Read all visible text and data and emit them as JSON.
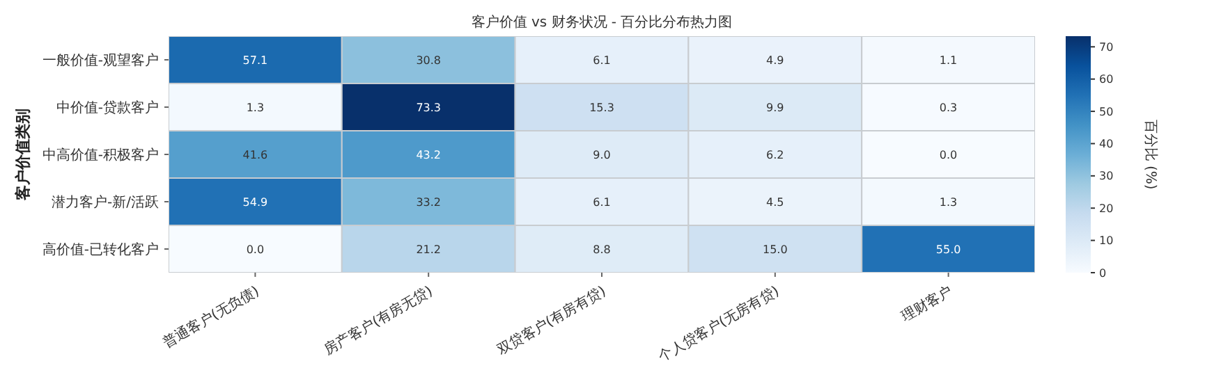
{
  "chart_data": {
    "type": "heatmap",
    "title": "客户价值 vs 财务状况 - 百分比分布热力图",
    "ylabel": "客户价值类别",
    "clabel": "百分比 (%)",
    "categories": [
      "普通客户(无负债)",
      "房产客户(有房无贷)",
      "双贷客户(有房有贷)",
      "个人贷客户(无房有贷)",
      "理财客户"
    ],
    "y_categories": [
      "一般价值-观望客户",
      "中价值-贷款客户",
      "中高价值-积极客户",
      "潜力客户-新/活跃",
      "高价值-已转化客户"
    ],
    "cells": [
      [
        57.1,
        30.8,
        6.1,
        4.9,
        1.1
      ],
      [
        1.3,
        73.3,
        15.3,
        9.9,
        0.3
      ],
      [
        41.6,
        43.2,
        9.0,
        6.2,
        0.0
      ],
      [
        54.9,
        33.2,
        6.1,
        4.5,
        1.3
      ],
      [
        0.0,
        21.2,
        8.8,
        15.0,
        55.0
      ]
    ],
    "cell_labels": [
      [
        "57.1",
        "30.8",
        "6.1",
        "4.9",
        "1.1"
      ],
      [
        "1.3",
        "73.3",
        "15.3",
        "9.9",
        "0.3"
      ],
      [
        "41.6",
        "43.2",
        "9.0",
        "6.2",
        "0.0"
      ],
      [
        "54.9",
        "33.2",
        "6.1",
        "4.5",
        "1.3"
      ],
      [
        "0.0",
        "21.2",
        "8.8",
        "15.0",
        "55.0"
      ]
    ],
    "clim": [
      0,
      73.3
    ],
    "cticks": [
      0,
      10,
      20,
      30,
      40,
      50,
      60,
      70
    ]
  }
}
